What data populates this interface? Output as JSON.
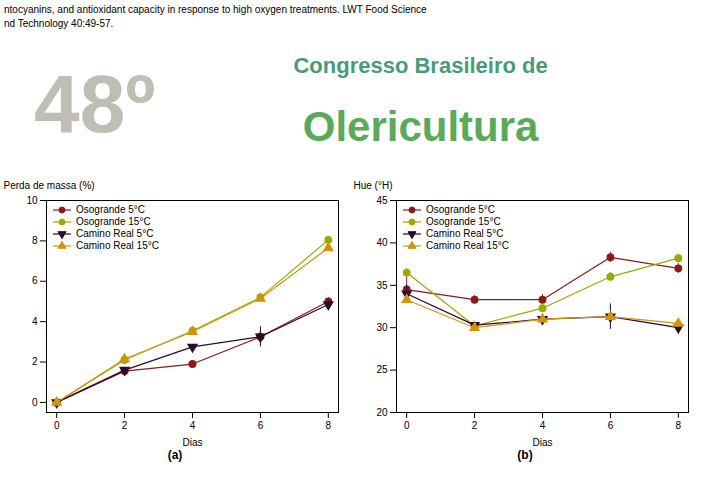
{
  "chart_data": [
    {
      "type": "line",
      "title": "(a)",
      "annotations": [
        "ntocyanins, and antioxidant capacity in response to high oxygen treatments. LWT Food Science",
        "nd Technology 40:49-57.",
        {
          "text": "48º",
          "color": "#c0bdb5"
        },
        {
          "text": "Congresso Brasileiro de",
          "color": "#4a9a7a"
        },
        {
          "text": "Olericultura",
          "color": "#5aaa5a"
        }
      ],
      "xlabel": "Dias",
      "ylabel": "Perda de massa (%)",
      "x": [
        0,
        2,
        4,
        6,
        8
      ],
      "xlim": [
        -0.3,
        8.3
      ],
      "xticks": [
        0,
        2,
        4,
        6,
        8
      ],
      "ylim": [
        -0.5,
        10
      ],
      "yticks": [
        0,
        2,
        4,
        6,
        8,
        10
      ],
      "legend": "upper left",
      "series": [
        {
          "name": "Osogrande 5°C",
          "color": "#8B1A1A",
          "marker": "circle",
          "values": [
            0.0,
            1.55,
            1.9,
            3.25,
            5.0
          ],
          "errors": [
            0.05,
            0.12,
            0.15,
            0.3,
            0.2
          ]
        },
        {
          "name": "Osogrande 15°C",
          "color": "#9aaa00",
          "marker": "circle",
          "values": [
            0.0,
            2.1,
            3.55,
            5.2,
            8.05
          ],
          "errors": [
            0.05,
            0.1,
            0.12,
            0.15,
            0.15
          ]
        },
        {
          "name": "Camino Real 5°C",
          "color": "#2B0A2A",
          "marker": "triangle-down",
          "values": [
            0.0,
            1.6,
            2.75,
            3.25,
            4.85
          ],
          "errors": [
            0.05,
            0.1,
            0.12,
            0.5,
            0.2
          ]
        },
        {
          "name": "Camino Real 15°C",
          "color": "#D4940A",
          "marker": "triangle-up",
          "values": [
            0.0,
            2.15,
            3.5,
            5.15,
            7.65
          ],
          "errors": [
            0.05,
            0.1,
            0.1,
            0.15,
            0.15
          ]
        }
      ]
    },
    {
      "type": "line",
      "title": "(b)",
      "xlabel": "Dias",
      "ylabel": "Hue (°H)",
      "x": [
        0,
        2,
        4,
        6,
        8
      ],
      "xlim": [
        -0.3,
        8.3
      ],
      "xticks": [
        0,
        2,
        4,
        6,
        8
      ],
      "ylim": [
        20,
        45
      ],
      "yticks": [
        20,
        25,
        30,
        35,
        40,
        45
      ],
      "legend": "upper left",
      "series": [
        {
          "name": "Osogrande 5°C",
          "color": "#8B1A1A",
          "marker": "circle",
          "values": [
            34.5,
            33.3,
            33.3,
            38.3,
            37.0
          ],
          "errors": [
            1.5,
            0.5,
            0.6,
            0.6,
            0.6
          ]
        },
        {
          "name": "Osogrande 15°C",
          "color": "#9aaa00",
          "marker": "circle",
          "values": [
            36.5,
            30.2,
            32.3,
            36.0,
            38.2
          ],
          "errors": [
            0.5,
            0.4,
            0.5,
            0.5,
            0.5
          ]
        },
        {
          "name": "Camino Real 5°C",
          "color": "#2B0A2A",
          "marker": "triangle-down",
          "values": [
            34.0,
            30.3,
            31.0,
            31.3,
            30.0
          ],
          "errors": [
            1.0,
            0.4,
            0.5,
            1.5,
            0.4
          ]
        },
        {
          "name": "Camino Real 15°C",
          "color": "#D4940A",
          "marker": "triangle-up",
          "values": [
            33.3,
            30.0,
            31.0,
            31.3,
            30.5
          ],
          "errors": [
            0.5,
            0.3,
            0.3,
            0.5,
            0.4
          ]
        }
      ]
    }
  ]
}
